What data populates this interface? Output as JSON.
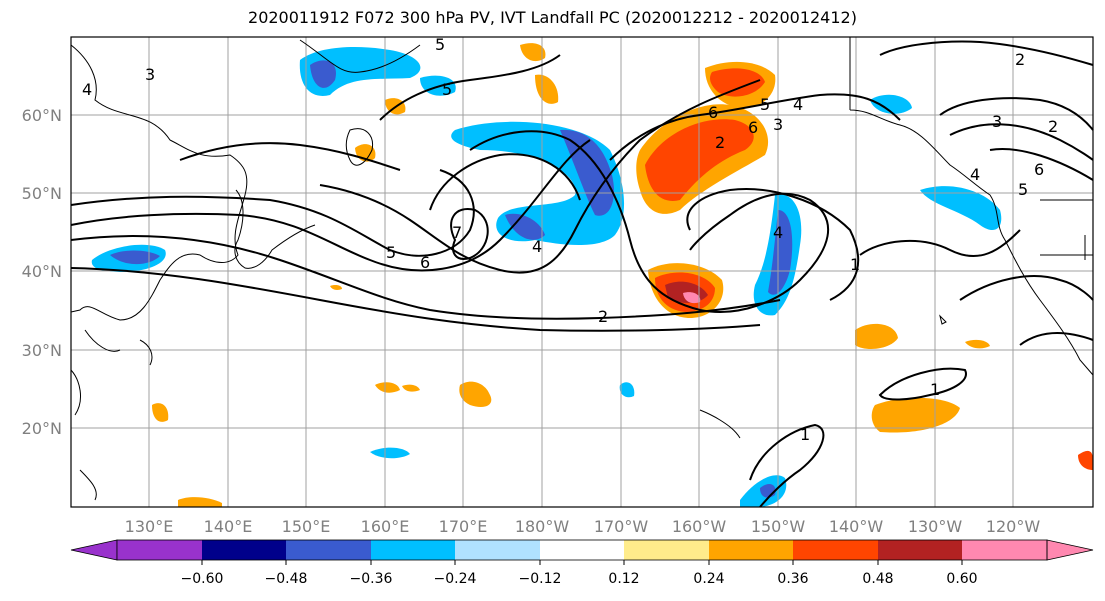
{
  "title": "2020011912 F072 300 hPa PV, IVT Landfall PC (2020012212 - 2020012412)",
  "map": {
    "lat_labels": [
      "60°N",
      "50°N",
      "40°N",
      "30°N",
      "20°N"
    ],
    "lon_labels": [
      "130°E",
      "140°E",
      "150°E",
      "160°E",
      "170°E",
      "180°W",
      "170°W",
      "160°W",
      "150°W",
      "140°W",
      "130°W",
      "120°W"
    ],
    "contour_labels": [
      "3",
      "4",
      "5",
      "2",
      "6",
      "5",
      "4",
      "3",
      "6",
      "2",
      "7",
      "5",
      "6",
      "4",
      "4",
      "5",
      "1",
      "3",
      "2",
      "6",
      "4",
      "5",
      "2",
      "1",
      "1"
    ],
    "colors": {
      "land_outline": "#000000",
      "grid": "#a0a0a0",
      "neg_strong": "#3a5bcf",
      "neg_mid": "#00bfff",
      "neg_weak": "#b0e2ff",
      "pos_weak": "#ffec8b",
      "pos_mid": "#ffa500",
      "pos_strong": "#ff4500",
      "pos_very": "#b22222",
      "pos_extreme": "#ff88b0"
    }
  },
  "colorbar": {
    "ticks": [
      "−0.60",
      "−0.48",
      "−0.36",
      "−0.24",
      "−0.12",
      "0.12",
      "0.24",
      "0.36",
      "0.48",
      "0.60"
    ],
    "colors": [
      "#9932cc",
      "#00008b",
      "#3a5bcf",
      "#00bfff",
      "#b0e2ff",
      "#ffffff",
      "#ffec8b",
      "#ffa500",
      "#ff4500",
      "#b22222",
      "#ff88b0",
      "#ff88b0"
    ]
  }
}
